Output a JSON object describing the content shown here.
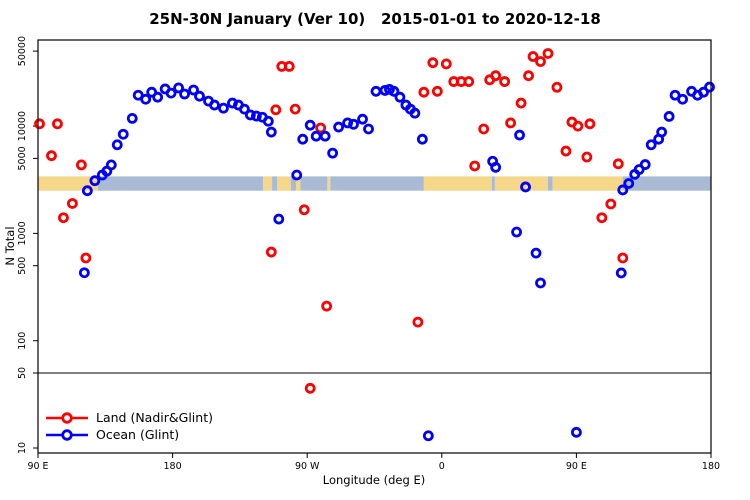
{
  "title": "25N-30N January (Ver 10)   2015-01-01 to 2020-12-18",
  "chart_data": {
    "type": "scatter",
    "title": "25N-30N January (Ver 10)   2015-01-01 to 2020-12-18",
    "xlabel": "Longitude (deg E)",
    "ylabel": "N Total",
    "x_axis": {
      "range_deg_east": [
        90,
        540
      ],
      "ticks": [
        {
          "lon": 90,
          "label": "90 E"
        },
        {
          "lon": 180,
          "label": "180"
        },
        {
          "lon": 270,
          "label": "90 W"
        },
        {
          "lon": 360,
          "label": "0"
        },
        {
          "lon": 450,
          "label": "90 E"
        },
        {
          "lon": 540,
          "label": "180"
        }
      ]
    },
    "y_axis": {
      "scale": "log",
      "range": [
        9,
        63000
      ],
      "ticks": [
        10,
        50,
        100,
        500,
        1000,
        5000,
        10000,
        50000
      ]
    },
    "reference_line_y": 50,
    "grid": false,
    "legend_position": "bottom-left",
    "surface_band": {
      "n_top": 3400,
      "n_bottom": 2500,
      "land_color": "#F5D78A",
      "ocean_color": "#A9BBD4",
      "segments": [
        {
          "from": 90,
          "to": 130,
          "surface": "land"
        },
        {
          "from": 130,
          "to": 240.5,
          "surface": "ocean"
        },
        {
          "from": 240.5,
          "to": 246.5,
          "surface": "land"
        },
        {
          "from": 246.5,
          "to": 250,
          "surface": "ocean"
        },
        {
          "from": 250,
          "to": 259,
          "surface": "land"
        },
        {
          "from": 259,
          "to": 262.5,
          "surface": "ocean"
        },
        {
          "from": 262.5,
          "to": 265.5,
          "surface": "land"
        },
        {
          "from": 265.5,
          "to": 283.5,
          "surface": "ocean"
        },
        {
          "from": 283.5,
          "to": 285.5,
          "surface": "land"
        },
        {
          "from": 285.5,
          "to": 348,
          "surface": "ocean"
        },
        {
          "from": 348,
          "to": 393.5,
          "surface": "land"
        },
        {
          "from": 393.5,
          "to": 395.5,
          "surface": "ocean"
        },
        {
          "from": 395.5,
          "to": 431,
          "surface": "land"
        },
        {
          "from": 431,
          "to": 434,
          "surface": "ocean"
        },
        {
          "from": 434,
          "to": 481,
          "surface": "land"
        },
        {
          "from": 481,
          "to": 540,
          "surface": "ocean"
        }
      ]
    },
    "series": [
      {
        "name": "Land (Nadir&Glint)",
        "color": "#FF0000",
        "points": [
          [
            91,
            10500
          ],
          [
            103,
            10500
          ],
          [
            99,
            5300
          ],
          [
            119,
            4350
          ],
          [
            113,
            1900
          ],
          [
            107,
            1400
          ],
          [
            122,
            590
          ],
          [
            253,
            36000
          ],
          [
            258,
            36000
          ],
          [
            249,
            14200
          ],
          [
            262,
            14400
          ],
          [
            279,
            9600
          ],
          [
            268,
            1660
          ],
          [
            246,
            670
          ],
          [
            283,
            210
          ],
          [
            272,
            36
          ],
          [
            344,
            149
          ],
          [
            354,
            39000
          ],
          [
            363,
            38000
          ],
          [
            348,
            20700
          ],
          [
            357,
            21100
          ],
          [
            368,
            26000
          ],
          [
            373,
            26000
          ],
          [
            378,
            26000
          ],
          [
            392,
            27000
          ],
          [
            396,
            29500
          ],
          [
            402,
            26000
          ],
          [
            406,
            10700
          ],
          [
            413,
            16400
          ],
          [
            418,
            29500
          ],
          [
            388,
            9400
          ],
          [
            382,
            4250
          ],
          [
            421,
            44500
          ],
          [
            426,
            40000
          ],
          [
            431,
            47500
          ],
          [
            437,
            23000
          ],
          [
            447,
            10900
          ],
          [
            451,
            10000
          ],
          [
            459,
            10500
          ],
          [
            443,
            5850
          ],
          [
            457,
            5150
          ],
          [
            478,
            4450
          ],
          [
            473,
            1880
          ],
          [
            467,
            1400
          ],
          [
            481,
            590
          ]
        ]
      },
      {
        "name": "Ocean (Glint)",
        "color": "#0000FF",
        "points": [
          [
            121,
            430
          ],
          [
            123,
            2500
          ],
          [
            128,
            3100
          ],
          [
            133,
            3500
          ],
          [
            136,
            3800
          ],
          [
            139,
            4350
          ],
          [
            143,
            6700
          ],
          [
            147,
            8400
          ],
          [
            153,
            11800
          ],
          [
            157,
            19400
          ],
          [
            162,
            17800
          ],
          [
            166,
            20700
          ],
          [
            170,
            18600
          ],
          [
            175,
            22200
          ],
          [
            179,
            20300
          ],
          [
            184,
            22700
          ],
          [
            188,
            19900
          ],
          [
            194,
            21700
          ],
          [
            198,
            19000
          ],
          [
            204,
            17100
          ],
          [
            208,
            15700
          ],
          [
            214,
            14700
          ],
          [
            220,
            16400
          ],
          [
            224,
            15700
          ],
          [
            228,
            14400
          ],
          [
            232,
            12700
          ],
          [
            236,
            12400
          ],
          [
            240,
            12100
          ],
          [
            244,
            11100
          ],
          [
            246,
            8800
          ],
          [
            251,
            1360
          ],
          [
            263,
            3500
          ],
          [
            267,
            7550
          ],
          [
            272,
            10200
          ],
          [
            276,
            8050
          ],
          [
            282,
            8050
          ],
          [
            287,
            5600
          ],
          [
            291,
            9800
          ],
          [
            297,
            10700
          ],
          [
            301,
            10400
          ],
          [
            307,
            11600
          ],
          [
            311,
            9400
          ],
          [
            316,
            21100
          ],
          [
            322,
            21500
          ],
          [
            325,
            22000
          ],
          [
            328,
            21100
          ],
          [
            332,
            18600
          ],
          [
            336,
            15700
          ],
          [
            339,
            14400
          ],
          [
            342,
            13200
          ],
          [
            347,
            7550
          ],
          [
            351,
            13
          ],
          [
            394,
            4700
          ],
          [
            396,
            4130
          ],
          [
            410,
            1030
          ],
          [
            412,
            8250
          ],
          [
            416,
            2710
          ],
          [
            423,
            655
          ],
          [
            426,
            345
          ],
          [
            450,
            14
          ],
          [
            480,
            428
          ],
          [
            481,
            2540
          ],
          [
            485,
            2920
          ],
          [
            489,
            3550
          ],
          [
            492,
            3940
          ],
          [
            496,
            4380
          ],
          [
            500,
            6700
          ],
          [
            505,
            7550
          ],
          [
            507,
            8800
          ],
          [
            512,
            12300
          ],
          [
            516,
            19400
          ],
          [
            521,
            17800
          ],
          [
            527,
            21100
          ],
          [
            531,
            19400
          ],
          [
            535,
            20700
          ],
          [
            539,
            23100
          ]
        ]
      }
    ]
  }
}
